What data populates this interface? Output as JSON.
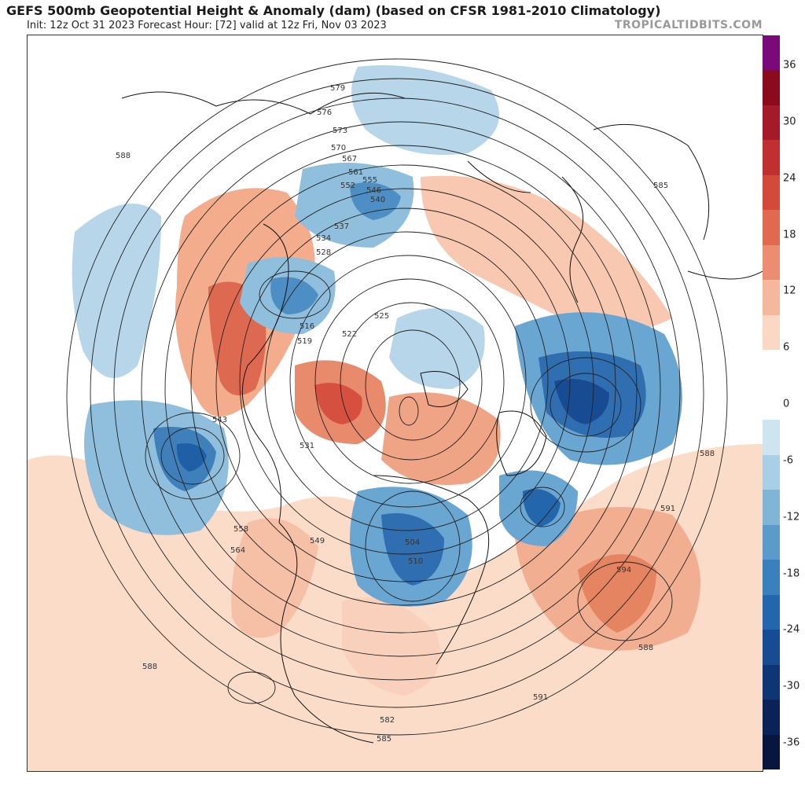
{
  "header": {
    "title": "GEFS 500mb Geopotential Height & Anomaly (dam) (based on CFSR 1981-2010 Climatology)",
    "subtitle": "Init: 12z Oct 31 2023   Forecast Hour: [72]   valid at 12z Fri, Nov 03 2023",
    "brand": "TROPICALTIDBITS.COM"
  },
  "colorbar": {
    "labels": [
      "36",
      "30",
      "24",
      "18",
      "12",
      "6",
      "0",
      "-6",
      "-12",
      "-18",
      "-24",
      "-30",
      "-36"
    ],
    "colors": [
      "#7a0a7a",
      "#8b0a1e",
      "#a51a2a",
      "#c03030",
      "#d44a3a",
      "#e06a50",
      "#ec8c70",
      "#f5b89c",
      "#fad8c4",
      "#ffffff",
      "#ffffff",
      "#cfe4f1",
      "#a9cfe6",
      "#80b5d8",
      "#5a9bcb",
      "#3a80bd",
      "#2466ab",
      "#174c92",
      "#0e3574",
      "#0a2257",
      "#08163f"
    ]
  },
  "map": {
    "contour_labels": [
      "588",
      "579",
      "576",
      "573",
      "570",
      "567",
      "561",
      "555",
      "552",
      "546",
      "540",
      "537",
      "534",
      "528",
      "525",
      "522",
      "519",
      "516",
      "543",
      "531",
      "549",
      "558",
      "564",
      "582",
      "585",
      "591",
      "594",
      "510",
      "504"
    ]
  }
}
